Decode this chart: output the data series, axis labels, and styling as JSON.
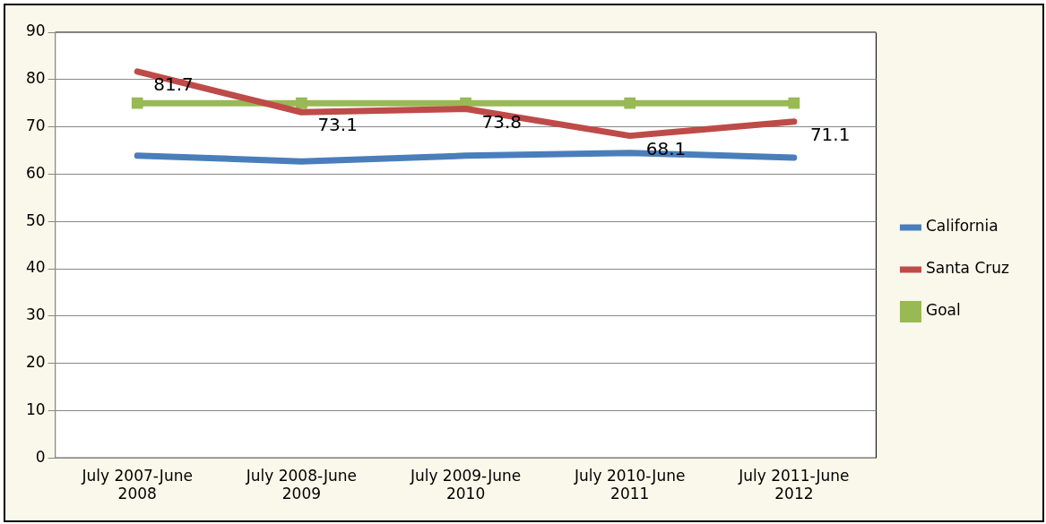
{
  "chart_data": {
    "type": "line",
    "categories": [
      "July 2007-June 2008",
      "July 2008-June 2009",
      "July 2009-June 2010",
      "July 2010-June 2011",
      "July 2011-June 2012"
    ],
    "series": [
      {
        "name": "California",
        "color": "#4a7ebb",
        "values": [
          63.9,
          62.7,
          63.9,
          64.5,
          63.5
        ]
      },
      {
        "name": "Santa Cruz",
        "color": "#be4b48",
        "values": [
          81.7,
          73.1,
          73.8,
          68.1,
          71.1
        ],
        "value_labels": [
          "81.7",
          "73.1",
          "73.8",
          "68.1",
          "71.1"
        ]
      },
      {
        "name": "Goal",
        "color": "#98b954",
        "values": [
          75,
          75,
          75,
          75,
          75
        ],
        "marker": "square"
      }
    ],
    "ylim": [
      0,
      90
    ],
    "yticks": [
      0,
      10,
      20,
      30,
      40,
      50,
      60,
      70,
      80,
      90
    ],
    "grid": "y",
    "legend": "right",
    "line_style": "solid"
  }
}
